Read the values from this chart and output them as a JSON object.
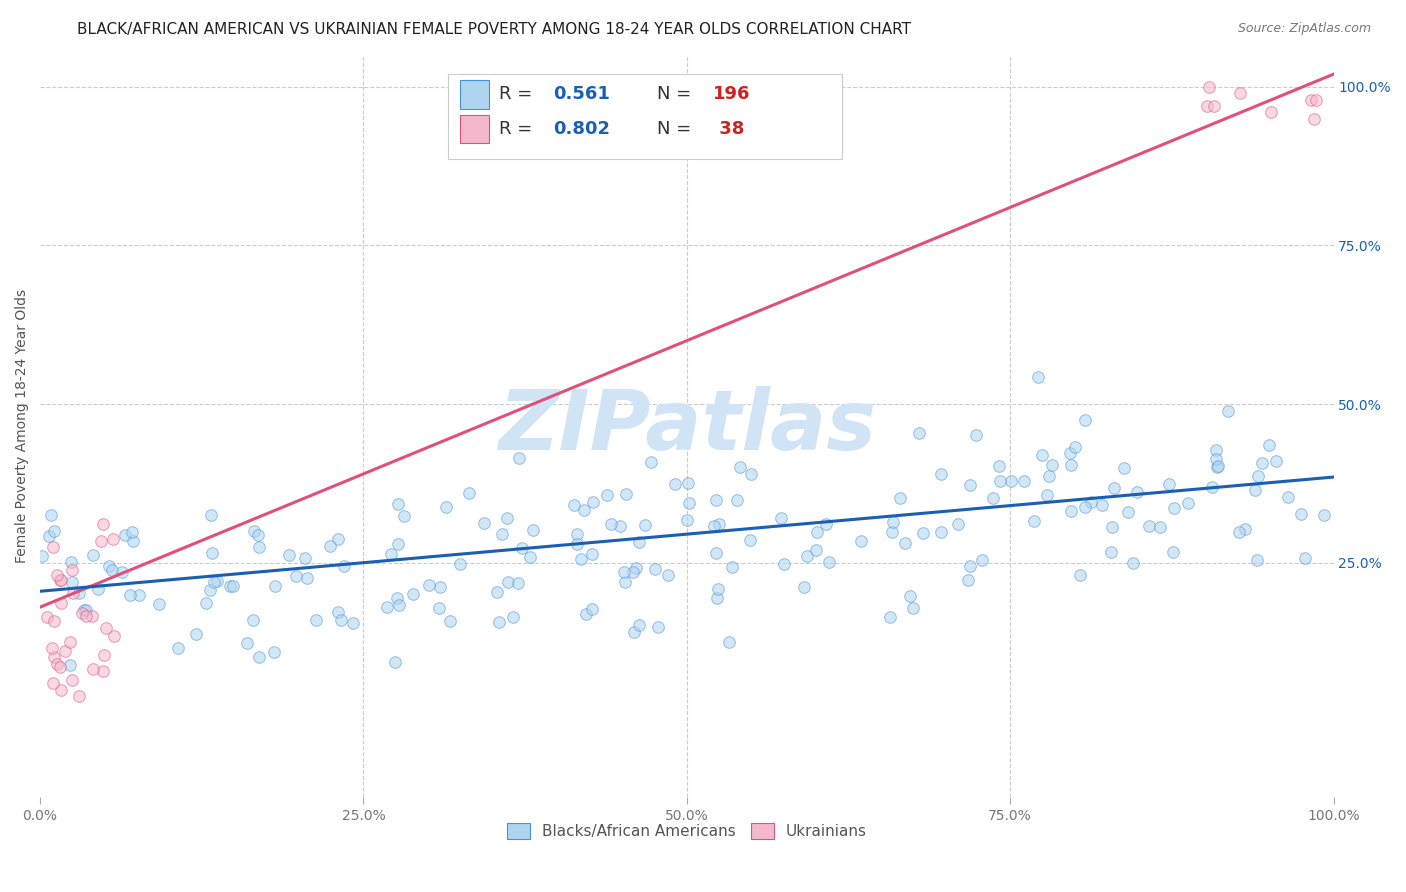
{
  "title": "BLACK/AFRICAN AMERICAN VS UKRAINIAN FEMALE POVERTY AMONG 18-24 YEAR OLDS CORRELATION CHART",
  "source": "Source: ZipAtlas.com",
  "ylabel": "Female Poverty Among 18-24 Year Olds",
  "blue_R": 0.561,
  "blue_N": 196,
  "pink_R": 0.802,
  "pink_N": 38,
  "blue_color": "#aed4f0",
  "pink_color": "#f4b8cc",
  "blue_edge_color": "#4a90d9",
  "pink_edge_color": "#e05080",
  "blue_line_color": "#1a5fb4",
  "pink_line_color": "#e0507a",
  "blue_label": "Blacks/African Americans",
  "pink_label": "Ukrainians",
  "watermark_color": "#d0e4f5",
  "background_color": "#ffffff",
  "xmin": 0.0,
  "xmax": 1.0,
  "ymin": -0.12,
  "ymax": 1.05,
  "pink_line_x0": 0.0,
  "pink_line_y0": 0.18,
  "pink_line_x1": 1.0,
  "pink_line_y1": 1.02,
  "blue_line_x0": 0.0,
  "blue_line_y0": 0.205,
  "blue_line_x1": 1.0,
  "blue_line_y1": 0.385,
  "title_fontsize": 11,
  "source_fontsize": 9,
  "ylabel_fontsize": 10,
  "tick_fontsize": 10,
  "legend_fontsize": 13,
  "marker_size": 70,
  "marker_alpha": 0.55,
  "line_width": 2.2
}
